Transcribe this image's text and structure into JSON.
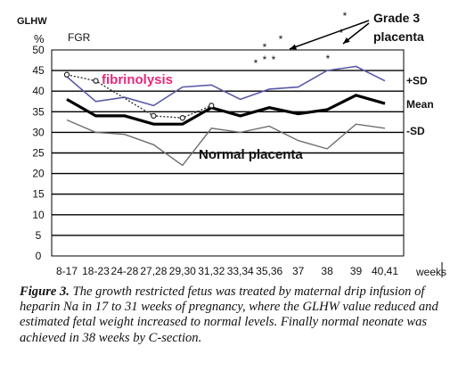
{
  "chart_data": {
    "type": "line",
    "y_axis_title": "GLHW",
    "y_axis_unit": "%",
    "x_axis_title": "weeks",
    "ylim": [
      0,
      50
    ],
    "yticks": [
      0,
      5,
      10,
      15,
      20,
      25,
      30,
      35,
      40,
      45,
      50
    ],
    "categories": [
      "8-17",
      "18-23",
      "24-28",
      "27,28",
      "29,30",
      "31,32",
      "33,34",
      "35,36",
      "37",
      "38",
      "39",
      "40,41"
    ],
    "series": [
      {
        "name": "+SD",
        "color": "#5a5aa8",
        "values": [
          43.5,
          37.5,
          38.5,
          36.5,
          41,
          41.5,
          38,
          40.5,
          41,
          45,
          46,
          42.5
        ]
      },
      {
        "name": "Mean",
        "color": "#000000",
        "values": [
          38,
          34,
          34,
          32,
          32,
          36,
          34,
          36,
          34.5,
          35.5,
          39,
          37
        ]
      },
      {
        "name": "-SD",
        "color": "#6e6e6e",
        "values": [
          33,
          30,
          29.5,
          27,
          22,
          31,
          30,
          31.5,
          28,
          26,
          32,
          31
        ]
      },
      {
        "name": "FGR",
        "color": "#333333",
        "values": [
          44,
          42.5,
          null,
          34,
          33.5,
          36.5,
          null,
          null,
          null,
          null,
          null,
          null
        ]
      }
    ],
    "grid": true,
    "annotations": {
      "fgr_label": "FGR",
      "fibrinolysis": "fibrinolysis",
      "normal_placenta": "Normal placenta",
      "grade3_line1": "Grade 3",
      "grade3_line2": "placenta",
      "star": "*"
    },
    "colors": {
      "fibrinolysis": "#e8287a",
      "plus_sd": "#5a5aa8",
      "minus_sd": "#6e6e6e"
    }
  },
  "caption": {
    "label": "Figure 3.",
    "text": " The growth restricted fetus was treated by maternal drip infusion of heparin Na in 17 to 31 weeks of pregnancy, where the GLHW value reduced and estimated fetal weight increased to normal levels. Finally normal neonate was achieved in 38 weeks by C-section."
  }
}
